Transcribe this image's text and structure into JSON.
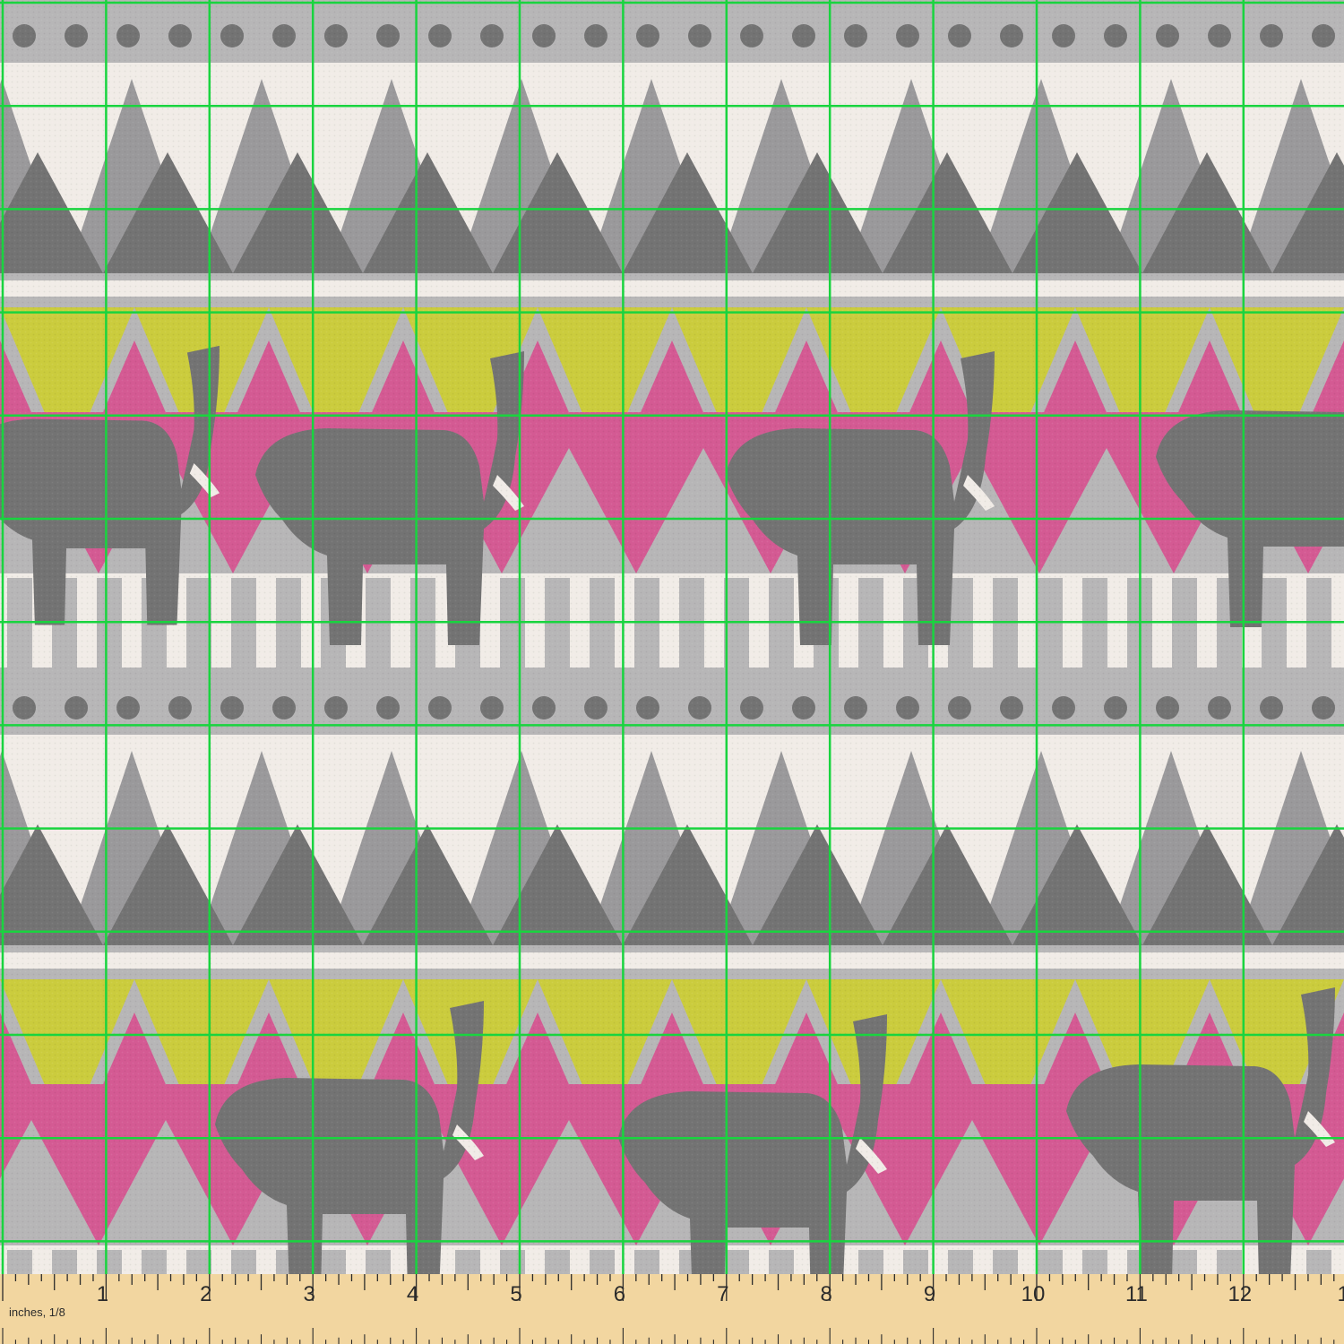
{
  "image": {
    "subject": "fabric swatch",
    "pattern": "tribal stripes with elephants",
    "colors": {
      "cream": "#f1ece7",
      "light_gray": "#b7b6b7",
      "mid_gray": "#9a999b",
      "dark_gray": "#737373",
      "dots": "#737373",
      "yellow": "#cbcc3d",
      "pink": "#d45a93",
      "grid": "#19d43f",
      "ruler": "#f2d6a0",
      "ruler_ink": "#2b2b2b"
    }
  },
  "ruler": {
    "unit_label": "inches, 1/8",
    "numbers": [
      "1",
      "2",
      "3",
      "4",
      "5",
      "6",
      "7",
      "8",
      "9",
      "10",
      "11",
      "12",
      "1"
    ]
  }
}
